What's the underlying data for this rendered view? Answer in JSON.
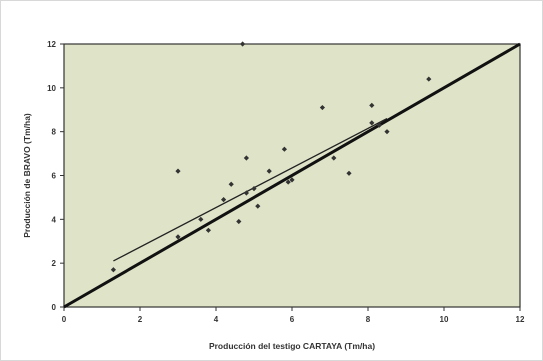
{
  "colors": {
    "plot_bg": "#dfe4c8",
    "frame": "#333333",
    "points": "#333333",
    "trend": "#222222",
    "identity": "#111111"
  },
  "chart_data": {
    "type": "scatter",
    "xlabel": "Producción del testigo CARTAYA (Tm/ha)",
    "ylabel": "Producción de BRAVO (Tm/ha)",
    "xlim": [
      0,
      12
    ],
    "ylim": [
      0,
      12
    ],
    "xticks": [
      0,
      2,
      4,
      6,
      8,
      10,
      12
    ],
    "yticks": [
      0,
      2,
      4,
      6,
      8,
      10,
      12
    ],
    "grid": false,
    "points": [
      {
        "x": 1.3,
        "y": 1.7
      },
      {
        "x": 3.0,
        "y": 3.2
      },
      {
        "x": 3.0,
        "y": 6.2
      },
      {
        "x": 3.6,
        "y": 4.0
      },
      {
        "x": 3.8,
        "y": 3.5
      },
      {
        "x": 4.2,
        "y": 4.9
      },
      {
        "x": 4.4,
        "y": 5.6
      },
      {
        "x": 4.6,
        "y": 3.9
      },
      {
        "x": 4.8,
        "y": 6.8
      },
      {
        "x": 4.8,
        "y": 5.2
      },
      {
        "x": 5.0,
        "y": 5.4
      },
      {
        "x": 5.1,
        "y": 4.6
      },
      {
        "x": 5.4,
        "y": 6.2
      },
      {
        "x": 5.8,
        "y": 7.2
      },
      {
        "x": 5.9,
        "y": 5.7
      },
      {
        "x": 6.0,
        "y": 5.8
      },
      {
        "x": 6.8,
        "y": 9.1
      },
      {
        "x": 7.1,
        "y": 6.8
      },
      {
        "x": 7.5,
        "y": 6.1
      },
      {
        "x": 8.1,
        "y": 9.2
      },
      {
        "x": 8.1,
        "y": 8.4
      },
      {
        "x": 8.3,
        "y": 8.3
      },
      {
        "x": 8.5,
        "y": 8.0
      },
      {
        "x": 9.6,
        "y": 10.4
      },
      {
        "x": 4.7,
        "y": 12.0
      }
    ],
    "trend_line": {
      "x": [
        1.3,
        8.5
      ],
      "y": [
        2.1,
        8.6
      ]
    },
    "identity_line": {
      "x": [
        0,
        12
      ],
      "y": [
        0,
        12
      ]
    }
  }
}
